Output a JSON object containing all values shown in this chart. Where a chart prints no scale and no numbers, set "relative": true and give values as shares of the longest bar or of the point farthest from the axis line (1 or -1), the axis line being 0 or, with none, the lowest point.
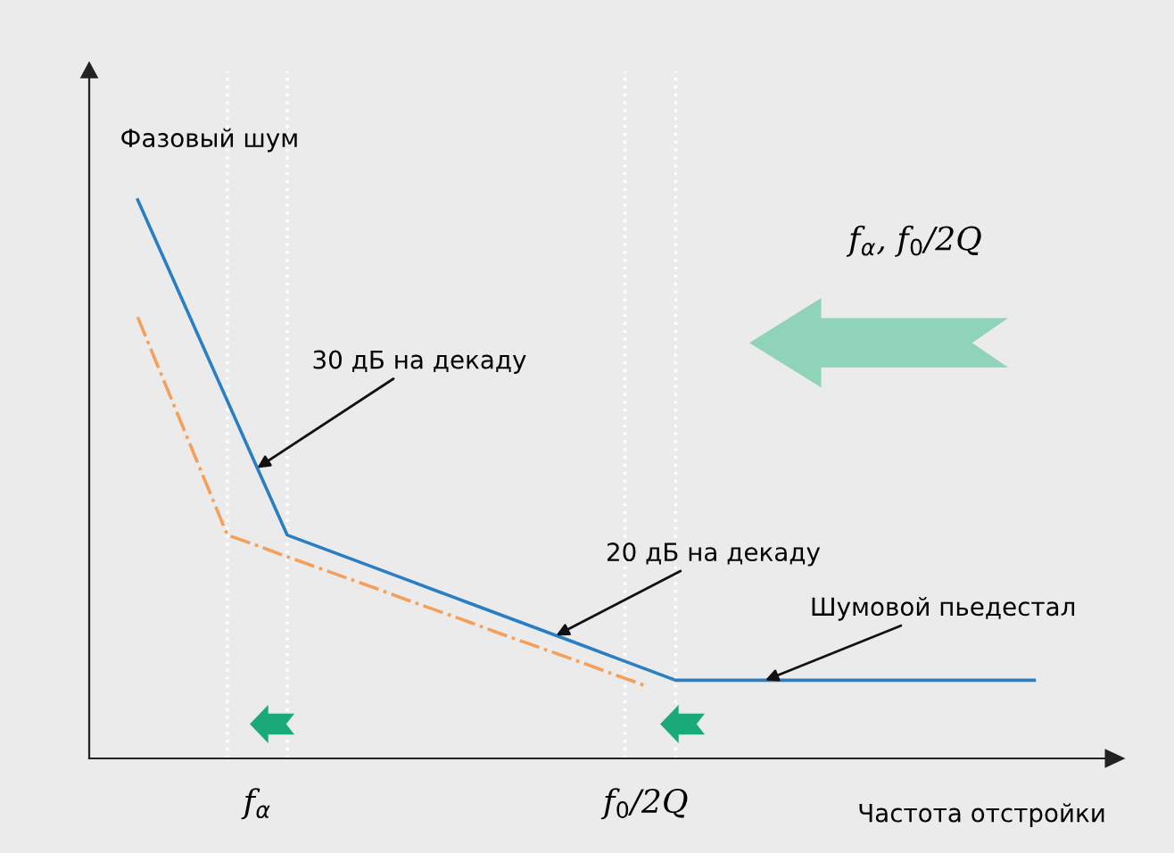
{
  "chart_data": {
    "type": "line",
    "relative": true,
    "xlabel": "Частота отстройки",
    "ylabel": "Фазовый шум",
    "tick_labels": "x",
    "marker": "none",
    "grid": "x",
    "categories": [
      null,
      null,
      null,
      null,
      "f$_{α}$",
      null,
      null,
      null,
      null,
      null,
      null,
      null,
      null,
      null,
      null,
      null,
      null,
      "f$_{0}$/2Q",
      null,
      null,
      null,
      null,
      null,
      null,
      null,
      null,
      null,
      null,
      null,
      null,
      null
    ],
    "series": [
      {
        "color": "#2a7fc4",
        "line_style": "solid",
        "values": [
          1,
          0.88,
          0.76,
          0.64,
          0.52,
          0.4,
          0.38,
          0.36,
          0.34,
          0.32,
          0.3,
          0.28,
          0.26,
          0.24,
          0.22,
          0.2,
          0.18,
          0.16,
          0.14,
          0.14,
          0.14,
          0.14,
          0.14,
          0.14,
          0.14,
          0.14,
          0.14,
          0.14,
          0.14,
          0.14,
          0.14
        ]
      },
      {
        "color": "#f5a05a",
        "line_style": "dashdot",
        "values": [
          0.79,
          0.66,
          0.53,
          0.4,
          0.381,
          0.361,
          0.342,
          0.323,
          0.304,
          0.284,
          0.265,
          0.246,
          0.226,
          0.207,
          0.188,
          0.169,
          0.149,
          0.13,
          null,
          null,
          null,
          null,
          null,
          null,
          null,
          null,
          null,
          null,
          null,
          null,
          null
        ]
      }
    ],
    "annotations": [
      "30 дБ на декаду",
      "20 дБ на декаду",
      "Шумовой пьедестал",
      "f$_{α}$, f$_{0}$/2Q"
    ]
  }
}
